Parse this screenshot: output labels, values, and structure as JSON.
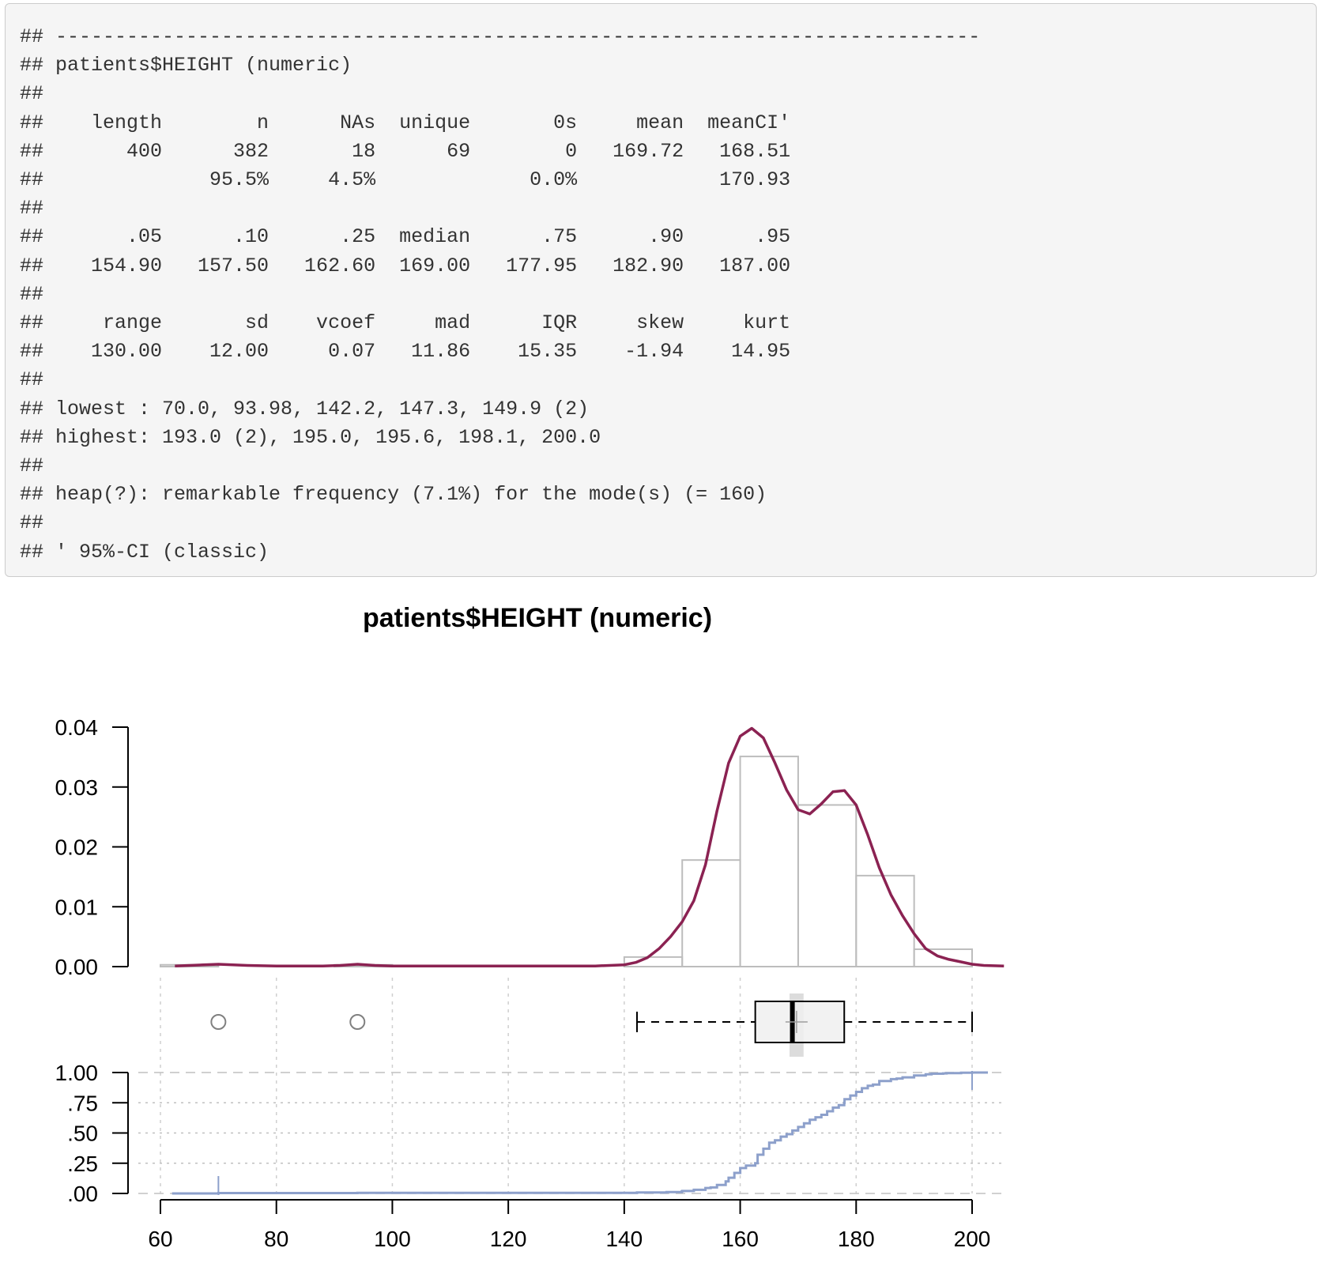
{
  "console": {
    "lines": [
      "## ------------------------------------------------------------------------------",
      "## patients$HEIGHT (numeric)",
      "##",
      "##    length        n      NAs  unique       0s     mean  meanCI'",
      "##       400      382       18      69        0   169.72   168.51",
      "##              95.5%     4.5%             0.0%            170.93",
      "##",
      "##       .05      .10      .25  median      .75      .90      .95",
      "##    154.90   157.50   162.60  169.00   177.95   182.90   187.00",
      "##",
      "##     range       sd    vcoef     mad      IQR     skew     kurt",
      "##    130.00    12.00     0.07   11.86    15.35    -1.94    14.95",
      "##",
      "## lowest : 70.0, 93.98, 142.2, 147.3, 149.9 (2)",
      "## highest: 193.0 (2), 195.0, 195.6, 198.1, 200.0",
      "##",
      "## heap(?): remarkable frequency (7.1%) for the mode(s) (= 160)",
      "##",
      "## ' 95%-CI (classic)"
    ]
  },
  "chart_data": {
    "type": "histogram-density-boxplot-ecdf",
    "title": "patients$HEIGHT (numeric)",
    "xlim": [
      60,
      200
    ],
    "x_ticks": [
      "60",
      "80",
      "100",
      "120",
      "140",
      "160",
      "180",
      "200"
    ],
    "histogram": {
      "bins": [
        {
          "from": 60,
          "to": 70,
          "density": 0.0003
        },
        {
          "from": 70,
          "to": 80,
          "density": 0
        },
        {
          "from": 80,
          "to": 90,
          "density": 0
        },
        {
          "from": 90,
          "to": 100,
          "density": 0.0003
        },
        {
          "from": 100,
          "to": 110,
          "density": 0
        },
        {
          "from": 110,
          "to": 120,
          "density": 0
        },
        {
          "from": 120,
          "to": 130,
          "density": 0
        },
        {
          "from": 130,
          "to": 140,
          "density": 0
        },
        {
          "from": 140,
          "to": 150,
          "density": 0.0016
        },
        {
          "from": 150,
          "to": 160,
          "density": 0.0178
        },
        {
          "from": 160,
          "to": 170,
          "density": 0.0351
        },
        {
          "from": 170,
          "to": 180,
          "density": 0.027
        },
        {
          "from": 180,
          "to": 190,
          "density": 0.0152
        },
        {
          "from": 190,
          "to": 200,
          "density": 0.0029
        }
      ],
      "ylim": [
        0,
        0.04
      ],
      "y_ticks": [
        "0.00",
        "0.01",
        "0.02",
        "0.03",
        "0.04"
      ]
    },
    "density_curve": {
      "x": [
        62.5,
        65,
        70,
        75,
        80,
        85,
        88,
        91,
        94,
        97,
        100,
        110,
        120,
        130,
        135,
        140,
        142,
        144,
        146,
        148,
        150,
        152,
        154,
        156,
        158,
        160,
        162,
        164,
        166,
        168,
        170,
        172,
        174,
        176,
        178,
        180,
        182,
        184,
        186,
        188,
        190,
        192,
        194,
        196,
        198,
        200,
        202,
        205.5
      ],
      "y": [
        0.0001,
        0.0002,
        0.0004,
        0.0002,
        0.0001,
        0.0001,
        0.0001,
        0.0002,
        0.0004,
        0.0002,
        0.0001,
        0.0001,
        0.0001,
        0.0001,
        0.0001,
        0.0003,
        0.0007,
        0.0015,
        0.003,
        0.005,
        0.0075,
        0.011,
        0.017,
        0.026,
        0.034,
        0.0385,
        0.0398,
        0.0382,
        0.034,
        0.0295,
        0.0262,
        0.0255,
        0.0272,
        0.0292,
        0.0294,
        0.027,
        0.022,
        0.0165,
        0.012,
        0.0085,
        0.0055,
        0.003,
        0.0018,
        0.0012,
        0.0008,
        0.0004,
        0.0002,
        0.0001
      ],
      "color": "#8B2252"
    },
    "boxplot": {
      "whisker_low": 142.2,
      "q1": 162.6,
      "median": 169.0,
      "q3": 177.95,
      "whisker_high": 200.0,
      "mean": 169.72,
      "mean_ci": [
        168.51,
        170.93
      ],
      "outliers": [
        70.0,
        93.98
      ]
    },
    "ecdf": {
      "points": [
        [
          70,
          0.003
        ],
        [
          93.98,
          0.005
        ],
        [
          142.2,
          0.008
        ],
        [
          147.3,
          0.011
        ],
        [
          149.9,
          0.016
        ],
        [
          150,
          0.02
        ],
        [
          152,
          0.03
        ],
        [
          154,
          0.045
        ],
        [
          154.9,
          0.05
        ],
        [
          156,
          0.07
        ],
        [
          157.5,
          0.1
        ],
        [
          158,
          0.13
        ],
        [
          159,
          0.17
        ],
        [
          160,
          0.21
        ],
        [
          161,
          0.23
        ],
        [
          162.6,
          0.25
        ],
        [
          163,
          0.32
        ],
        [
          164,
          0.37
        ],
        [
          165,
          0.42
        ],
        [
          166,
          0.44
        ],
        [
          167,
          0.47
        ],
        [
          168,
          0.49
        ],
        [
          169,
          0.52
        ],
        [
          170,
          0.55
        ],
        [
          171,
          0.58
        ],
        [
          172,
          0.61
        ],
        [
          173,
          0.63
        ],
        [
          174,
          0.65
        ],
        [
          175,
          0.68
        ],
        [
          176,
          0.71
        ],
        [
          177,
          0.73
        ],
        [
          177.95,
          0.75
        ],
        [
          178,
          0.78
        ],
        [
          179,
          0.81
        ],
        [
          180,
          0.84
        ],
        [
          181,
          0.87
        ],
        [
          182,
          0.89
        ],
        [
          182.9,
          0.9
        ],
        [
          184,
          0.93
        ],
        [
          186,
          0.945
        ],
        [
          187,
          0.95
        ],
        [
          188,
          0.96
        ],
        [
          190,
          0.975
        ],
        [
          192,
          0.985
        ],
        [
          193,
          0.99
        ],
        [
          195,
          0.993
        ],
        [
          195.6,
          0.995
        ],
        [
          198.1,
          0.998
        ],
        [
          200,
          1.0
        ]
      ],
      "ylim": [
        0,
        1
      ],
      "y_ticks": [
        ".00",
        ".25",
        ".50",
        ".75",
        "1.00"
      ],
      "color": "#8DA0CB"
    }
  }
}
